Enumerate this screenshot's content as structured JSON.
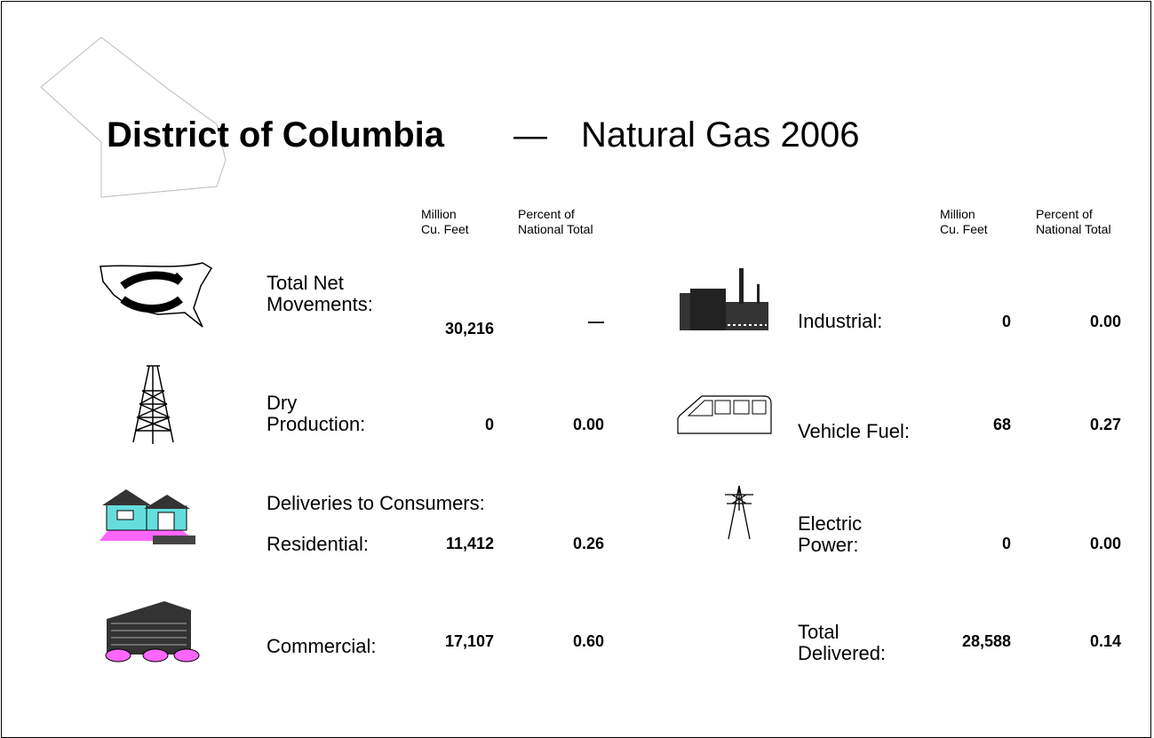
{
  "header": {
    "state": "District of Columbia",
    "dash": "—",
    "subtitle": "Natural Gas 2006"
  },
  "left": {
    "columns": {
      "volume": [
        "Million",
        "Cu. Feet"
      ],
      "percent": [
        "Percent of",
        "National Total"
      ]
    },
    "rows": [
      {
        "label": [
          "Total Net",
          "Movements:"
        ],
        "volume": "30,216",
        "percent": "—"
      },
      {
        "label": [
          "Dry",
          "Production:"
        ],
        "volume": "0",
        "percent": "0.00"
      }
    ],
    "section": "Deliveries to Consumers:",
    "consumers": [
      {
        "label": [
          "Residential:"
        ],
        "volume": "11,412",
        "percent": "0.26"
      },
      {
        "label": [
          "Commercial:"
        ],
        "volume": "17,107",
        "percent": "0.60"
      }
    ]
  },
  "right": {
    "columns": {
      "volume": [
        "Million",
        "Cu. Feet"
      ],
      "percent": [
        "Percent of",
        "National Total"
      ]
    },
    "rows": [
      {
        "label": [
          "Industrial:"
        ],
        "volume": "0",
        "percent": "0.00"
      },
      {
        "label": [
          "Vehicle Fuel:"
        ],
        "volume": "68",
        "percent": "0.27"
      },
      {
        "label": [
          "Electric",
          "Power:"
        ],
        "volume": "0",
        "percent": "0.00"
      },
      {
        "label": [
          "Total",
          "Delivered:"
        ],
        "volume": "28,588",
        "percent": "0.14"
      }
    ]
  }
}
